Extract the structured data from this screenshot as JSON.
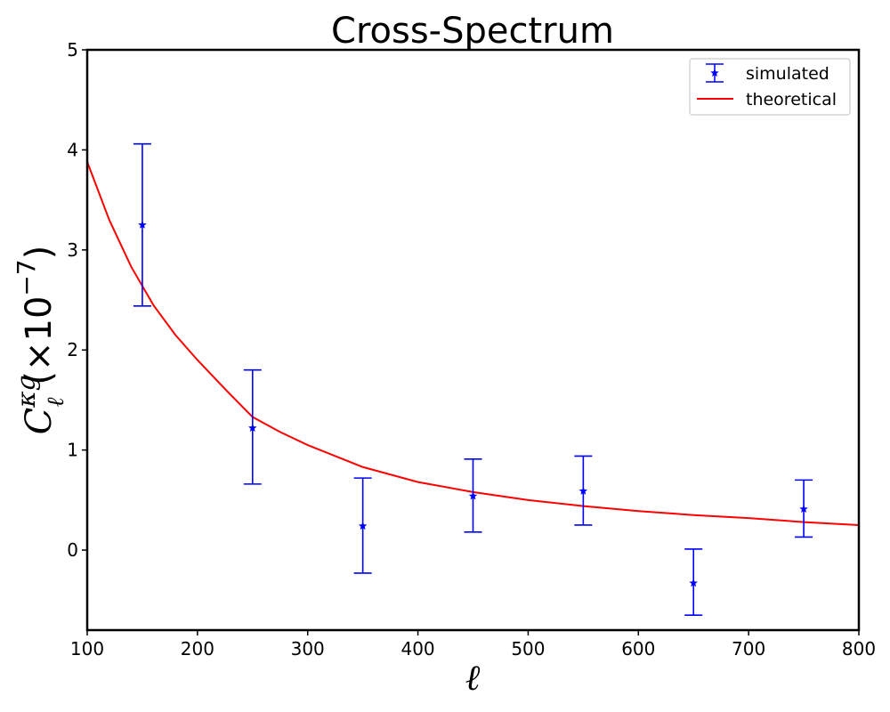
{
  "chart_data": {
    "type": "scatter",
    "title": "Cross-Spectrum",
    "xlabel": "ℓ",
    "ylabel": {
      "base": "C",
      "superscript": "κg",
      "subscript": "ℓ",
      "multiplier": "(×10",
      "exponent": "−7",
      "close": ")"
    },
    "xlim": [
      100,
      800
    ],
    "ylim": [
      -0.8,
      5
    ],
    "xticks": [
      "100",
      "200",
      "300",
      "400",
      "500",
      "600",
      "700",
      "800"
    ],
    "yticks": [
      "0",
      "1",
      "2",
      "3",
      "4",
      "5"
    ],
    "legend_position": "top-right",
    "series": [
      {
        "name": "simulated",
        "kind": "errorbar",
        "color": "#0000ff",
        "marker": "star",
        "x": [
          150,
          250,
          350,
          450,
          550,
          650,
          750
        ],
        "y": [
          3.25,
          1.22,
          0.24,
          0.54,
          0.59,
          -0.33,
          0.41
        ],
        "yerr_low": [
          2.44,
          0.66,
          -0.23,
          0.18,
          0.25,
          -0.65,
          0.13
        ],
        "yerr_high": [
          4.06,
          1.8,
          0.72,
          0.91,
          0.94,
          0.01,
          0.7
        ]
      },
      {
        "name": "theoretical",
        "kind": "line",
        "color": "#ff0000",
        "x": [
          100,
          120,
          140,
          160,
          180,
          200,
          225,
          250,
          275,
          300,
          350,
          400,
          450,
          500,
          550,
          600,
          650,
          700,
          750,
          800
        ],
        "y": [
          3.88,
          3.3,
          2.83,
          2.45,
          2.15,
          1.9,
          1.61,
          1.33,
          1.18,
          1.05,
          0.83,
          0.68,
          0.58,
          0.5,
          0.44,
          0.39,
          0.35,
          0.32,
          0.28,
          0.25
        ]
      }
    ]
  }
}
